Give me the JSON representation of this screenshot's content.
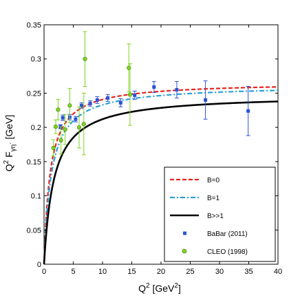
{
  "chart_data": {
    "type": "line",
    "title": "",
    "xlabel": {
      "main": "Q",
      "sup1": "2",
      "rest": " [GeV",
      "sup2": "2",
      "end": "]"
    },
    "ylabel": {
      "main": "Q",
      "sup1": "2",
      "rest": " F",
      "sub": "γη´",
      "end": " [GeV]"
    },
    "xlim": [
      0,
      40
    ],
    "ylim": [
      0,
      0.35
    ],
    "xticks": [
      "0",
      "5",
      "10",
      "15",
      "20",
      "25",
      "30",
      "35",
      "40"
    ],
    "xtick_values": [
      0,
      5,
      10,
      15,
      20,
      25,
      30,
      35,
      40
    ],
    "yticks": [
      "0",
      "0.05",
      "0.1",
      "0.15",
      "0.2",
      "0.25",
      "0.3",
      "0.35"
    ],
    "ytick_values": [
      0,
      0.05,
      0.1,
      0.15,
      0.2,
      0.25,
      0.3,
      0.35
    ],
    "grid": false,
    "legend_position": "bottom-right",
    "series": [
      {
        "name": "B=0",
        "kind": "curve",
        "style": "dashed",
        "color": "#e8231d",
        "asymptote": 0.266,
        "scale": 1.05
      },
      {
        "name": "B=1",
        "kind": "curve",
        "style": "dashdot",
        "color": "#2a9fd8",
        "asymptote": 0.262,
        "scale": 1.25
      },
      {
        "name": "B>>1",
        "kind": "curve",
        "style": "solid",
        "color": "#000000",
        "asymptote": 0.248,
        "scale": 1.7
      },
      {
        "name": "BaBar (2011)",
        "kind": "points",
        "marker": "square",
        "color": "#2b52d4",
        "x": [
          2.8,
          3.2,
          4.4,
          5.4,
          6.4,
          7.9,
          9.1,
          10.9,
          13.1,
          15.5,
          18.8,
          22.7,
          27.6,
          34.9
        ],
        "y": [
          0.201,
          0.214,
          0.215,
          0.212,
          0.232,
          0.235,
          0.24,
          0.243,
          0.236,
          0.247,
          0.259,
          0.255,
          0.24,
          0.224
        ],
        "err": [
          0.003,
          0.004,
          0.004,
          0.004,
          0.004,
          0.004,
          0.005,
          0.005,
          0.006,
          0.006,
          0.008,
          0.012,
          0.028,
          0.036
        ]
      },
      {
        "name": "CLEO (1998)",
        "kind": "points",
        "marker": "circle",
        "color": "#7ed31f",
        "x": [
          1.6,
          2.0,
          2.4,
          2.9,
          3.6,
          4.4,
          6.0,
          6.8,
          7.0,
          14.5,
          14.7
        ],
        "y": [
          0.17,
          0.201,
          0.226,
          0.181,
          0.197,
          0.232,
          0.2,
          0.205,
          0.3,
          0.287,
          0.248
        ],
        "err": [
          0.012,
          0.01,
          0.015,
          0.02,
          0.022,
          0.025,
          0.03,
          0.045,
          0.04,
          0.035,
          0.045
        ]
      }
    ]
  }
}
